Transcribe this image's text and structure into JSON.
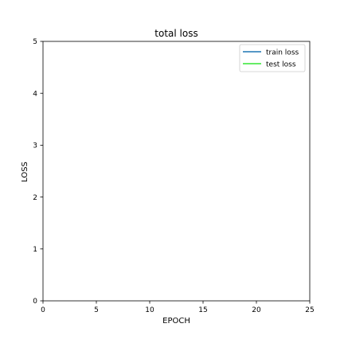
{
  "chart_data": {
    "type": "line",
    "title": "total loss",
    "xlabel": "EPOCH",
    "ylabel": "LOSS",
    "xlim": [
      0,
      25
    ],
    "ylim": [
      0,
      5
    ],
    "x_ticks": [
      "0",
      "5",
      "10",
      "15",
      "20",
      "25"
    ],
    "y_ticks": [
      "0",
      "1",
      "2",
      "3",
      "4",
      "5"
    ],
    "grid": false,
    "legend_position": "top-right",
    "series": [
      {
        "name": "train loss",
        "color": "#1f77b4",
        "x": [],
        "y": []
      },
      {
        "name": "test loss",
        "color": "#33e633",
        "x": [],
        "y": []
      }
    ]
  }
}
